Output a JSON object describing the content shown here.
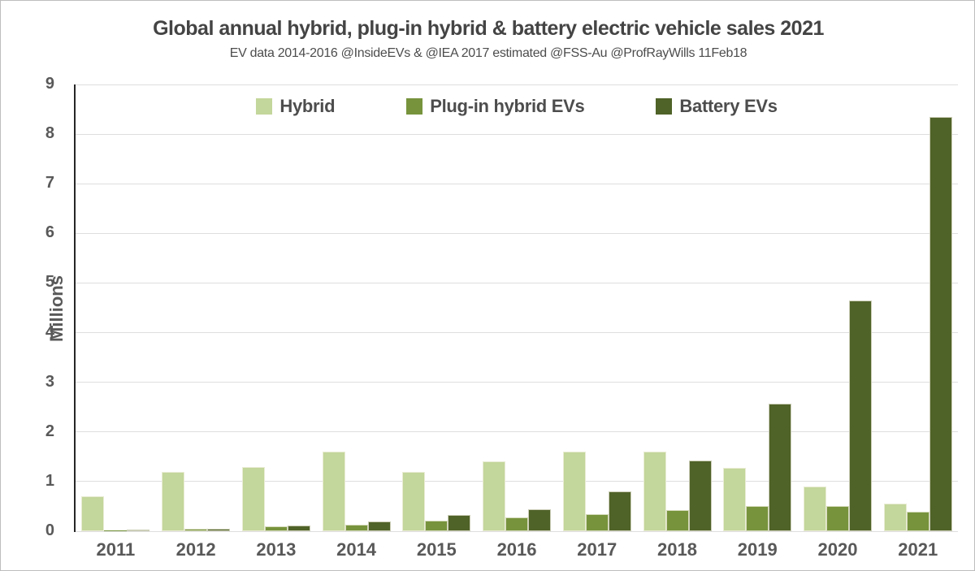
{
  "title": "Global annual hybrid, plug-in hybrid & battery electric vehicle sales 2021",
  "subtitle": "EV data 2014-2016 @InsideEVs & @IEA  2017 estimated @FSS-Au  @ProfRayWills 11Feb18",
  "colors": {
    "hybrid": "#c3d69b",
    "plugin_hybrid": "#77933c",
    "battery": "#4f6228",
    "gridline": "#dedede",
    "axis_line": "#262626",
    "text": "#595959",
    "title_text": "#444444",
    "frame_border": "#bdbdbd"
  },
  "legend": [
    {
      "label": "Hybrid",
      "color": "#c3d69b"
    },
    {
      "label": "Plug-in hybrid EVs",
      "color": "#77933c"
    },
    {
      "label": "Battery EVs",
      "color": "#4f6228"
    }
  ],
  "y_axis": {
    "title": "Millions",
    "min": 0,
    "max": 9,
    "tick_step": 1,
    "tick_labels": [
      "0",
      "1",
      "2",
      "3",
      "4",
      "5",
      "6",
      "7",
      "8",
      "9"
    ]
  },
  "chart_data": {
    "type": "bar",
    "title": "Global annual hybrid, plug-in hybrid & battery electric vehicle sales 2021",
    "subtitle": "EV data 2014-2016 @InsideEVs & @IEA  2017 estimated @FSS-Au  @ProfRayWills 11Feb18",
    "categories": [
      "2011",
      "2012",
      "2013",
      "2014",
      "2015",
      "2016",
      "2017",
      "2018",
      "2019",
      "2020",
      "2021"
    ],
    "series": [
      {
        "name": "Hybrid",
        "color": "#c3d69b",
        "values": [
          0.7,
          1.2,
          1.3,
          1.6,
          1.2,
          1.4,
          1.6,
          1.6,
          1.28,
          0.9,
          0.55
        ]
      },
      {
        "name": "Plug-in hybrid EVs",
        "color": "#77933c",
        "values": [
          0.01,
          0.05,
          0.1,
          0.13,
          0.22,
          0.28,
          0.35,
          0.43,
          0.5,
          0.5,
          0.4
        ]
      },
      {
        "name": "Battery EVs",
        "color": "#4f6228",
        "values": [
          0.04,
          0.05,
          0.11,
          0.19,
          0.33,
          0.45,
          0.8,
          1.43,
          2.57,
          4.65,
          8.35
        ]
      }
    ],
    "xlabel": "",
    "ylabel": "Millions",
    "ylim": [
      0,
      9
    ],
    "grid": true,
    "legend_position": "top"
  }
}
